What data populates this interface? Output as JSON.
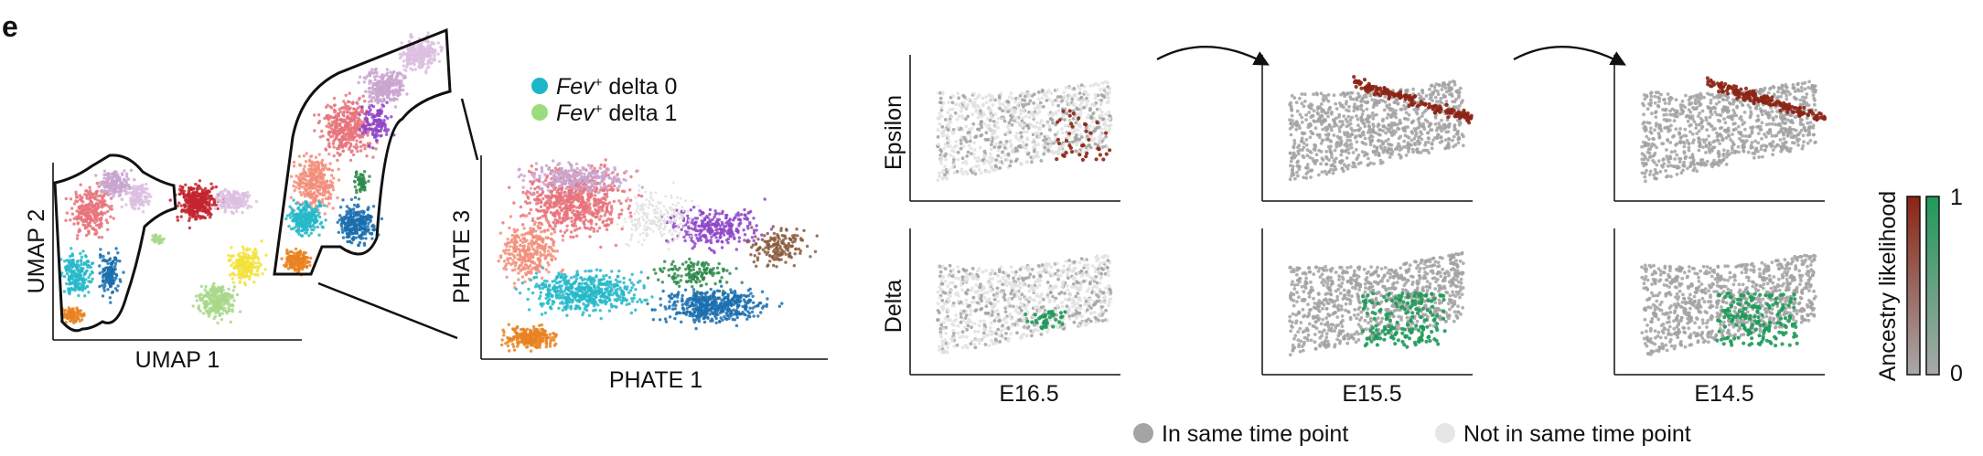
{
  "panel_letter": "e",
  "left": {
    "umap": {
      "xlabel": "UMAP 1",
      "ylabel": "UMAP 2"
    },
    "phate": {
      "xlabel": "PHATE 1",
      "ylabel": "PHATE 3"
    },
    "legend": [
      {
        "italic": "Fev",
        "sup": "+",
        "rest": " delta 0",
        "color": "#1cb8c9"
      },
      {
        "italic": "Fev",
        "sup": "+",
        "rest": " delta 1",
        "color": "#9bdc7c"
      }
    ],
    "cluster_colors": [
      "#e8737b",
      "#f28e7a",
      "#c9a5cf",
      "#dcbfe0",
      "#27b9c9",
      "#1b6fae",
      "#e98221",
      "#8e44c9",
      "#2e8b4b",
      "#c3242e",
      "#f2e33c",
      "#a8d88a",
      "#f4a9c1",
      "#8a5a3c"
    ]
  },
  "right": {
    "row_labels": [
      "Epsilon",
      "Delta"
    ],
    "col_labels": [
      "E16.5",
      "E15.5",
      "E14.5"
    ],
    "colorbar": {
      "label": "Ancestry likelihood",
      "max_label": "1",
      "min_label": "0",
      "epsilon_color": "#8c2414",
      "delta_color": "#1f9a5a",
      "base_color": "#a8a8a8"
    },
    "legend": [
      {
        "label": "In same time point",
        "color": "#a4a4a4"
      },
      {
        "label": "Not in same time point",
        "color": "#e6e6e6"
      }
    ],
    "highlight": {
      "epsilon": "#8c2414",
      "delta": "#1f9a5a",
      "grey": "#a2a2a2",
      "light": "#e2e2e2"
    }
  }
}
